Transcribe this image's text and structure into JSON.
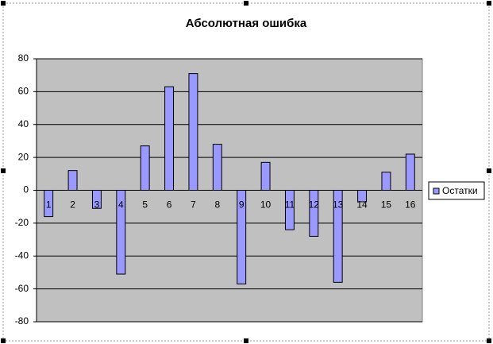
{
  "chart_data": {
    "type": "bar",
    "title": "Абсолютная ошибка",
    "categories": [
      "1",
      "2",
      "3",
      "4",
      "5",
      "6",
      "7",
      "8",
      "9",
      "10",
      "11",
      "12",
      "13",
      "14",
      "15",
      "16"
    ],
    "series": [
      {
        "name": "Остатки",
        "color": "#9999ff",
        "values": [
          -16,
          12,
          -11,
          -51,
          27,
          63,
          71,
          28,
          -57,
          17,
          -24,
          -28,
          -56,
          -7,
          11,
          22
        ]
      }
    ],
    "ylim": [
      -80,
      80
    ],
    "yticks": [
      -80,
      -60,
      -40,
      -20,
      0,
      20,
      40,
      60,
      80
    ],
    "grid": true,
    "legend": "right",
    "plot_background": "#c0c0c0"
  }
}
